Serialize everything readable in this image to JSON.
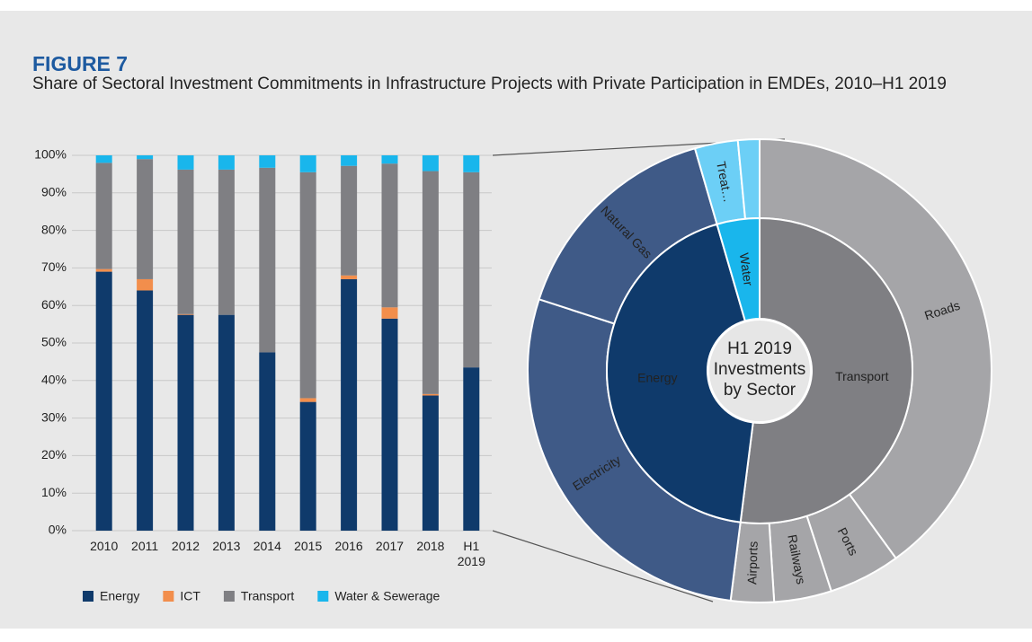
{
  "figure_label": "FIGURE 7",
  "title": "Share of Sectoral Investment Commitments in Infrastructure Projects with Private Participation in EMDEs, 2010–H1 2019",
  "chart_data": [
    {
      "type": "stacked_bar",
      "categories": [
        "2010",
        "2011",
        "2012",
        "2013",
        "2014",
        "2015",
        "2016",
        "2017",
        "2018",
        "H1 2019"
      ],
      "series": [
        {
          "name": "Energy",
          "color": "#0f3a6b",
          "values": [
            69,
            64,
            57.5,
            57.5,
            47.5,
            34.3,
            67,
            56.5,
            36,
            43.5
          ]
        },
        {
          "name": "ICT",
          "color": "#f28e4c",
          "values": [
            0.7,
            3,
            0.2,
            0,
            0,
            1,
            1,
            3,
            0.4,
            0
          ]
        },
        {
          "name": "Transport",
          "color": "#7f7f83",
          "values": [
            28.3,
            32,
            38.5,
            38.7,
            49.2,
            60.2,
            29.2,
            38.3,
            59.4,
            52
          ]
        },
        {
          "name": "Water & Sewerage",
          "color": "#19b6ec",
          "values": [
            2,
            1,
            3.8,
            3.8,
            3.3,
            4.5,
            2.8,
            2.2,
            4.2,
            4.5
          ]
        }
      ],
      "ylim": [
        0,
        100
      ],
      "yticks": [
        {
          "value": 0,
          "label": "0%"
        },
        {
          "value": 10,
          "label": "10%"
        },
        {
          "value": 20,
          "label": "20%"
        },
        {
          "value": 30,
          "label": "30%"
        },
        {
          "value": 40,
          "label": "40%"
        },
        {
          "value": 50,
          "label": "50%"
        },
        {
          "value": 60,
          "label": "60%"
        },
        {
          "value": 70,
          "label": "70%"
        },
        {
          "value": 80,
          "label": "80%"
        },
        {
          "value": 90,
          "label": "90%"
        },
        {
          "value": 100,
          "label": "100%"
        }
      ],
      "grid": true,
      "legend": "bottom"
    },
    {
      "type": "sunburst",
      "title": "H1 2019 Investments by Sector",
      "inner": {
        "categories": [
          "Transport",
          "Energy",
          "Water"
        ],
        "values": [
          52,
          43.5,
          4.5
        ],
        "colors": [
          "#7f7f83",
          "#0f3a6b",
          "#19b6ec"
        ]
      },
      "outer": {
        "categories": [
          "Roads",
          "Ports",
          "Railways",
          "Airports",
          "Electricity",
          "Natural Gas",
          "Treat…",
          null
        ],
        "values": [
          40,
          5,
          4,
          3,
          28,
          15.5,
          3,
          1.5
        ],
        "colors": [
          "#a5a5a8",
          "#a5a5a8",
          "#a5a5a8",
          "#a5a5a8",
          "#3f5a87",
          "#3f5a87",
          "#6ccff6",
          "#6ccff6"
        ]
      }
    }
  ]
}
